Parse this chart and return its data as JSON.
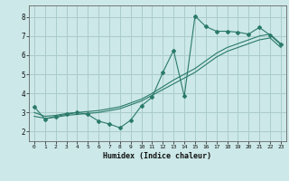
{
  "title": "",
  "xlabel": "Humidex (Indice chaleur)",
  "bg_color": "#cce8e8",
  "grid_color": "#aacccc",
  "line_color": "#2a7a6a",
  "xlim": [
    -0.5,
    23.5
  ],
  "ylim": [
    1.5,
    8.6
  ],
  "xticks": [
    0,
    1,
    2,
    3,
    4,
    5,
    6,
    7,
    8,
    9,
    10,
    11,
    12,
    13,
    14,
    15,
    16,
    17,
    18,
    19,
    20,
    21,
    22,
    23
  ],
  "yticks": [
    2,
    3,
    4,
    5,
    6,
    7,
    8
  ],
  "curve1_x": [
    0,
    1,
    2,
    3,
    4,
    5,
    6,
    7,
    8,
    9,
    10,
    11,
    12,
    13,
    14,
    15,
    16,
    17,
    18,
    19,
    20,
    21,
    22,
    23
  ],
  "curve1_y": [
    3.3,
    2.65,
    2.8,
    2.9,
    3.0,
    2.9,
    2.55,
    2.4,
    2.2,
    2.6,
    3.35,
    3.8,
    5.1,
    6.25,
    3.85,
    8.05,
    7.5,
    7.25,
    7.25,
    7.2,
    7.1,
    7.45,
    7.05,
    6.55
  ],
  "curve2_x": [
    0,
    1,
    2,
    3,
    4,
    5,
    6,
    7,
    8,
    9,
    10,
    11,
    12,
    13,
    14,
    15,
    16,
    17,
    18,
    19,
    20,
    21,
    22,
    23
  ],
  "curve2_y": [
    3.0,
    2.8,
    2.85,
    2.95,
    3.0,
    3.05,
    3.1,
    3.2,
    3.3,
    3.5,
    3.7,
    4.0,
    4.35,
    4.7,
    5.0,
    5.3,
    5.7,
    6.1,
    6.4,
    6.6,
    6.8,
    7.0,
    7.1,
    6.6
  ],
  "curve3_x": [
    0,
    1,
    2,
    3,
    4,
    5,
    6,
    7,
    8,
    9,
    10,
    11,
    12,
    13,
    14,
    15,
    16,
    17,
    18,
    19,
    20,
    21,
    22,
    23
  ],
  "curve3_y": [
    2.8,
    2.7,
    2.75,
    2.85,
    2.9,
    2.95,
    3.0,
    3.1,
    3.2,
    3.4,
    3.6,
    3.9,
    4.2,
    4.5,
    4.8,
    5.1,
    5.5,
    5.9,
    6.2,
    6.4,
    6.6,
    6.8,
    6.9,
    6.4
  ]
}
